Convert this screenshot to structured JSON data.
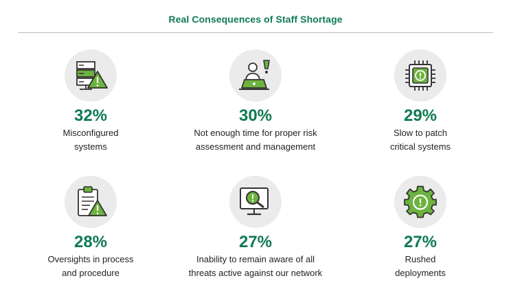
{
  "title": "Real Consequences of Staff Shortage",
  "colors": {
    "accent": "#0f7a52",
    "icon_green": "#6db33f",
    "icon_dark": "#333333",
    "circle": "#ebebeb"
  },
  "items": [
    {
      "icon": "server-warning-icon",
      "percent": "32%",
      "line1": "Misconfigured",
      "line2": "systems"
    },
    {
      "icon": "person-laptop-alert-icon",
      "percent": "30%",
      "line1": "Not enough time for proper risk",
      "line2": "assessment and management"
    },
    {
      "icon": "chip-alert-icon",
      "percent": "29%",
      "line1": "Slow to patch",
      "line2": "critical systems"
    },
    {
      "icon": "clipboard-warning-icon",
      "percent": "28%",
      "line1": "Oversights in process",
      "line2": "and procedure"
    },
    {
      "icon": "monitor-magnifier-alert-icon",
      "percent": "27%",
      "line1": "Inability to remain aware of all",
      "line2": "threats active against our network"
    },
    {
      "icon": "gear-alert-icon",
      "percent": "27%",
      "line1": "Rushed",
      "line2": "deployments"
    }
  ]
}
